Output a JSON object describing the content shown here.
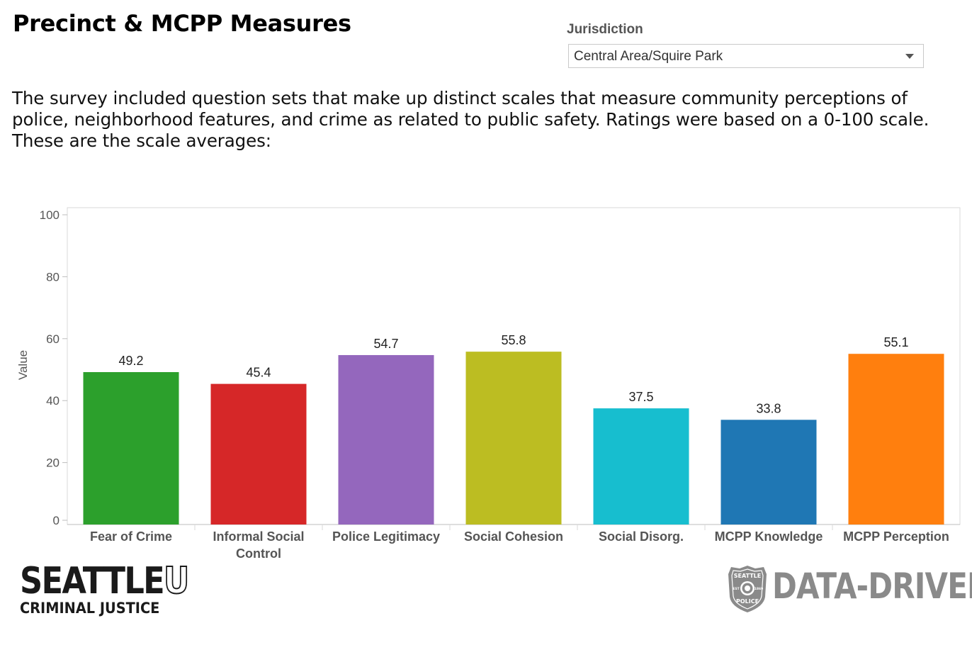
{
  "header": {
    "title": "Precinct & MCPP Measures",
    "filter_label": "Jurisdiction",
    "filter_value": "Central Area/Squire Park"
  },
  "intro_text": "The survey included question sets that make up distinct scales that measure community perceptions of police, neighborhood features, and crime as related to public safety. Ratings were based on a 0-100 scale. These are the scale averages:",
  "chart_data": {
    "type": "bar",
    "categories": [
      "Fear of Crime",
      "Informal Social Control",
      "Police Legitimacy",
      "Social Cohesion",
      "Social Disorg.",
      "MCPP Knowledge",
      "MCPP Perception"
    ],
    "category_lines": [
      [
        "Fear of Crime"
      ],
      [
        "Informal Social",
        "Control"
      ],
      [
        "Police Legitimacy"
      ],
      [
        "Social Cohesion"
      ],
      [
        "Social Disorg."
      ],
      [
        "MCPP Knowledge"
      ],
      [
        "MCPP Perception"
      ]
    ],
    "values": [
      49.2,
      45.4,
      54.7,
      55.8,
      37.5,
      33.8,
      55.1
    ],
    "colors": [
      "#2ca02c",
      "#d62728",
      "#9467bd",
      "#bcbd22",
      "#17becf",
      "#1f77b4",
      "#ff7f0e"
    ],
    "ylabel": "Value",
    "ylim": [
      0,
      100
    ],
    "yticks": [
      0,
      20,
      40,
      60,
      80,
      100
    ],
    "grid": false
  },
  "logos": {
    "seattleu_main": "SEATTLE",
    "seattleu_u": "U",
    "seattleu_sub": "CRIMINAL JUSTICE",
    "spd_badge_top": "SEATTLE",
    "spd_badge_bottom": "POLICE",
    "spd_badge_left": "EST",
    "spd_badge_right": "1869",
    "spd_text": "DATA-DRIVEN"
  }
}
